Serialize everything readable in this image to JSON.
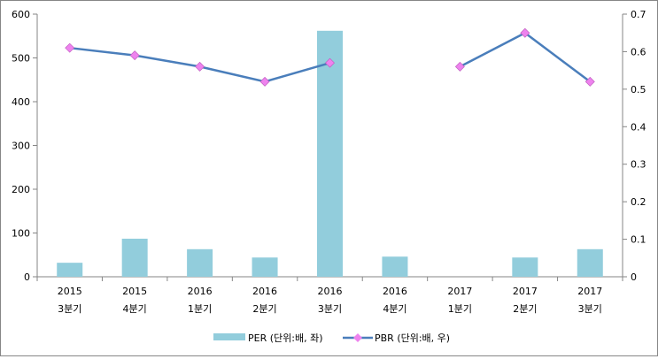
{
  "chart_data": {
    "type": "bar+line",
    "categories": [
      {
        "year": "2015",
        "quarter": "3분기"
      },
      {
        "year": "2015",
        "quarter": "4분기"
      },
      {
        "year": "2016",
        "quarter": "1분기"
      },
      {
        "year": "2016",
        "quarter": "2분기"
      },
      {
        "year": "2016",
        "quarter": "3분기"
      },
      {
        "year": "2016",
        "quarter": "4분기"
      },
      {
        "year": "2017",
        "quarter": "1분기"
      },
      {
        "year": "2017",
        "quarter": "2분기"
      },
      {
        "year": "2017",
        "quarter": "3분기"
      }
    ],
    "series": [
      {
        "name": "PER (단위:배, 좌)",
        "type": "bar",
        "axis": "left",
        "color": "#92cddc",
        "values": [
          32,
          87,
          63,
          44,
          562,
          46,
          null,
          44,
          63
        ]
      },
      {
        "name": "PBR (단위:배, 우)",
        "type": "line",
        "axis": "right",
        "color": "#4a7ebb",
        "marker_color": "#ee82ee",
        "values": [
          0.61,
          0.59,
          0.56,
          0.52,
          0.57,
          null,
          0.56,
          0.65,
          0.52
        ]
      }
    ],
    "left_axis": {
      "min": 0,
      "max": 600,
      "step": 100,
      "ticks": [
        "0",
        "100",
        "200",
        "300",
        "400",
        "500",
        "600"
      ]
    },
    "right_axis": {
      "min": 0,
      "max": 0.7,
      "step": 0.1,
      "ticks": [
        "0",
        "0.1",
        "0.2",
        "0.3",
        "0.4",
        "0.5",
        "0.6",
        "0.7"
      ]
    },
    "grid": false,
    "legend_position": "bottom"
  }
}
